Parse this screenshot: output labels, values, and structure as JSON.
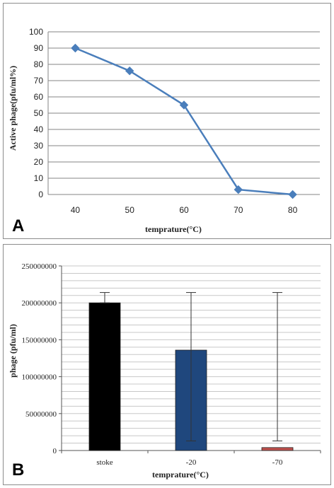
{
  "chart_data": [
    {
      "panel_label": "A",
      "type": "line",
      "x": [
        40,
        50,
        60,
        70,
        80
      ],
      "series": [
        {
          "values": [
            90,
            76,
            55,
            3,
            0
          ],
          "color": "#4a7ebb",
          "marker": "diamond"
        }
      ],
      "xlabel": "temprature(°C)",
      "ylabel": "Active phage(pfu/ml%)",
      "ylim": [
        0,
        100
      ],
      "yticks": [
        0,
        10,
        20,
        30,
        40,
        50,
        60,
        70,
        80,
        90,
        100
      ],
      "xticks": [
        "40",
        "50",
        "60",
        "70",
        "80"
      ],
      "grid": true,
      "grid_color": "#868686"
    },
    {
      "panel_label": "B",
      "type": "bar",
      "categories": [
        "stoke",
        "-20",
        "-70"
      ],
      "values": [
        200000000,
        136000000,
        4000000
      ],
      "error_bars": [
        {
          "low": 200000000,
          "high": 214000000
        },
        {
          "low": 13000000,
          "high": 214000000
        },
        {
          "low": 13000000,
          "high": 214000000
        }
      ],
      "colors": [
        "#000000",
        "#1f477d",
        "#c0504d"
      ],
      "xlabel": "temprature(°C)",
      "ylabel": "phage (pfu/ml)",
      "ylim": [
        0,
        250000000
      ],
      "yticks": [
        "0",
        "50000000",
        "100000000",
        "150000000",
        "200000000",
        "250000000"
      ],
      "grid": true,
      "grid_color": "#c8c8c8"
    }
  ]
}
